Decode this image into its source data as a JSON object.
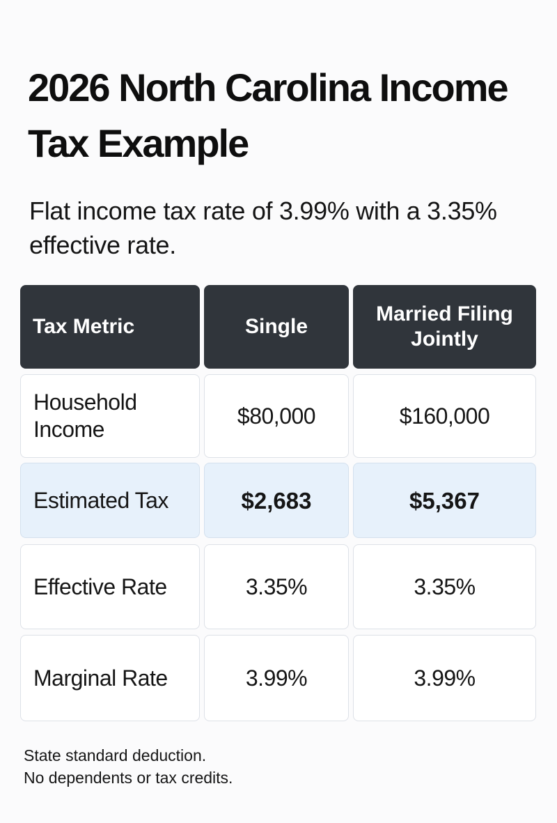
{
  "title": "2026 North Carolina Income Tax Example",
  "subtitle": "Flat income tax rate of 3.99% with a 3.35% effective rate.",
  "table": {
    "headers": [
      "Tax Metric",
      "Single",
      "Married Filing Jointly"
    ],
    "rows": [
      {
        "metric": "Household Income",
        "single": "$80,000",
        "married": "$160,000",
        "highlighted": false
      },
      {
        "metric": "Estimated Tax",
        "single": "$2,683",
        "married": "$5,367",
        "highlighted": true
      },
      {
        "metric": "Effective Rate",
        "single": "3.35%",
        "married": "3.35%",
        "highlighted": false
      },
      {
        "metric": "Marginal Rate",
        "single": "3.99%",
        "married": "3.99%",
        "highlighted": false
      }
    ]
  },
  "footnotes": [
    "State standard deduction.",
    "No dependents or tax credits."
  ],
  "colors": {
    "header_bg": "#30353b",
    "highlight_bg": "#e7f1fb",
    "cell_border": "#dde1e7"
  }
}
